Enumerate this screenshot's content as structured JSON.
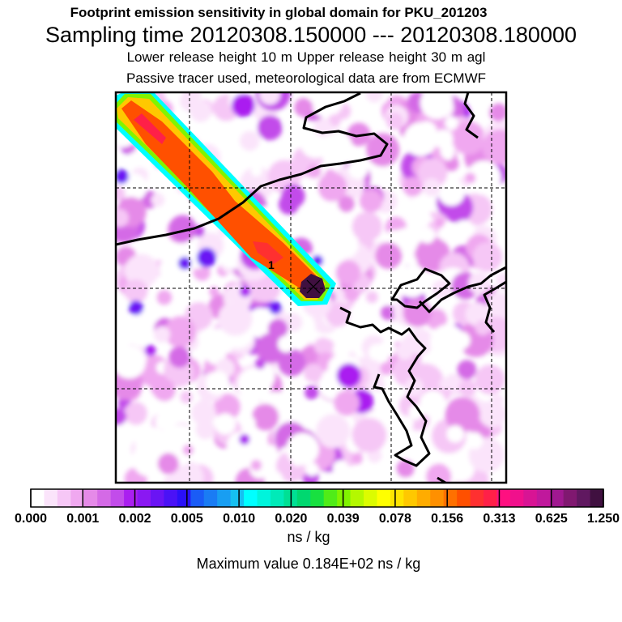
{
  "header": {
    "line1": "Footprint emission sensitivity in global domain for PKU_201203",
    "line2": "Sampling time   20120308.150000 --- 20120308.180000",
    "line3": "Lower release height   10 m          Upper release height   30 m    agl",
    "line4": "Passive tracer used, meteorological data are from ECMWF"
  },
  "footer": {
    "unit": "ns / kg",
    "maximum": "Maximum value  0.184E+02 ns / kg"
  },
  "chart_data": {
    "type": "heatmap",
    "title": "Footprint emission sensitivity in global domain for PKU_201203",
    "colorbar": {
      "tick_labels": [
        "0.000",
        "0.001",
        "0.002",
        "0.005",
        "0.010",
        "0.020",
        "0.039",
        "0.078",
        "0.156",
        "0.313",
        "0.625",
        "1.250"
      ],
      "unit": "ns / kg",
      "colors": [
        "#ffffff",
        "#fbe4fb",
        "#f6c7f6",
        "#f0a8f0",
        "#e58ae8",
        "#d46ae6",
        "#c24cea",
        "#aa1ff0",
        "#8a18f2",
        "#6a14f4",
        "#4a12f6",
        "#2a10f8",
        "#1a5cf6",
        "#1a7cf4",
        "#189ef2",
        "#16c0f0",
        "#00ffff",
        "#00f4dc",
        "#00eab8",
        "#00e094",
        "#00d870",
        "#18e040",
        "#50ec18",
        "#80f400",
        "#b4f800",
        "#dcfc00",
        "#ffff00",
        "#ffe400",
        "#ffc800",
        "#ffac00",
        "#ff9000",
        "#ff7000",
        "#ff5000",
        "#ff3030",
        "#ff2048",
        "#ff1080",
        "#f0108c",
        "#d81494",
        "#c0189c",
        "#a01890",
        "#801870",
        "#601860",
        "#401040"
      ]
    },
    "release_marker_label": "1",
    "max_value": "0.184E+02",
    "max_value_unit": "ns / kg",
    "plume": {
      "description": "high sensitivity band from upper-left corner to release point",
      "levels": [
        0.002,
        0.01,
        0.039,
        0.156,
        0.313,
        0.625,
        1.25
      ]
    }
  }
}
